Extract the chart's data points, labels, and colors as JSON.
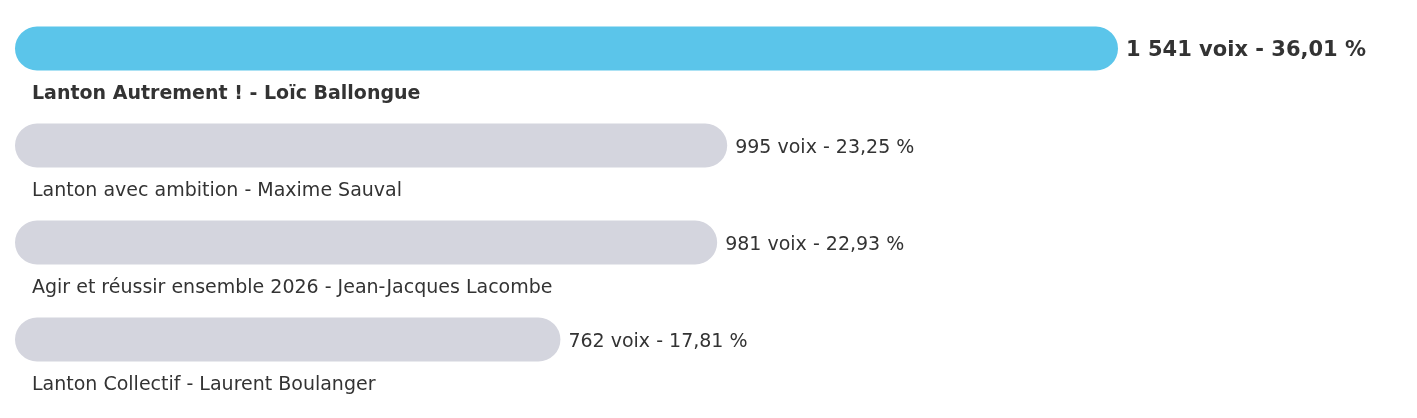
{
  "chart_data": {
    "type": "bar",
    "orientation": "horizontal",
    "categories": [
      "Lanton Autrement ! - Loïc Ballongue",
      "Lanton avec ambition - Maxime Sauval",
      "Agir et réussir ensemble 2026 - Jean-Jacques Lacombe",
      "Lanton Collectif - Laurent Boulanger"
    ],
    "values": [
      1541,
      995,
      981,
      762
    ],
    "value_labels": [
      "1 541 voix - 36,01 %",
      "995 voix - 23,25 %",
      "981 voix - 22,93 %",
      "762 voix - 17,81 %"
    ],
    "colors": [
      "#5bc5ea",
      "#d4d5de",
      "#d4d5de",
      "#d4d5de"
    ],
    "tick_labels": false
  }
}
